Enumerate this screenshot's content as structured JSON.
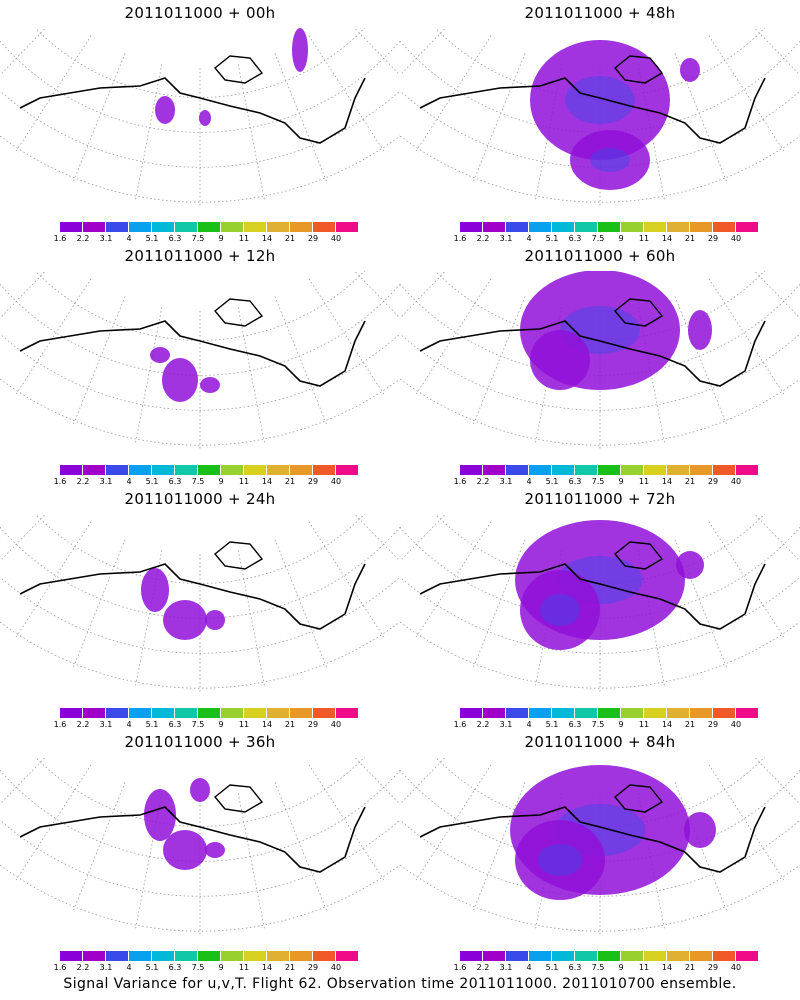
{
  "panels": [
    {
      "title": "2011011000 + 00h"
    },
    {
      "title": "2011011000 + 48h"
    },
    {
      "title": "2011011000 + 12h"
    },
    {
      "title": "2011011000 + 60h"
    },
    {
      "title": "2011011000 + 24h"
    },
    {
      "title": "2011011000 + 72h"
    },
    {
      "title": "2011011000 + 36h"
    },
    {
      "title": "2011011000 + 84h"
    }
  ],
  "colorbar": {
    "ticks": [
      "1.6",
      "2.2",
      "3.1",
      "4",
      "5.1",
      "6.3",
      "7.5",
      "9",
      "11",
      "14",
      "21",
      "29",
      "40"
    ],
    "colors": [
      "#8a00d8",
      "#a000c8",
      "#3a4ae8",
      "#0aa0f0",
      "#00b8d8",
      "#10c8a8",
      "#18c018",
      "#98d030",
      "#d8d020",
      "#e0b030",
      "#e89828",
      "#f05a28",
      "#f00c88"
    ]
  },
  "footer": "Signal Variance for u,v,T. Flight 62. Observation time 2011011000. 2011010700 ensemble."
}
